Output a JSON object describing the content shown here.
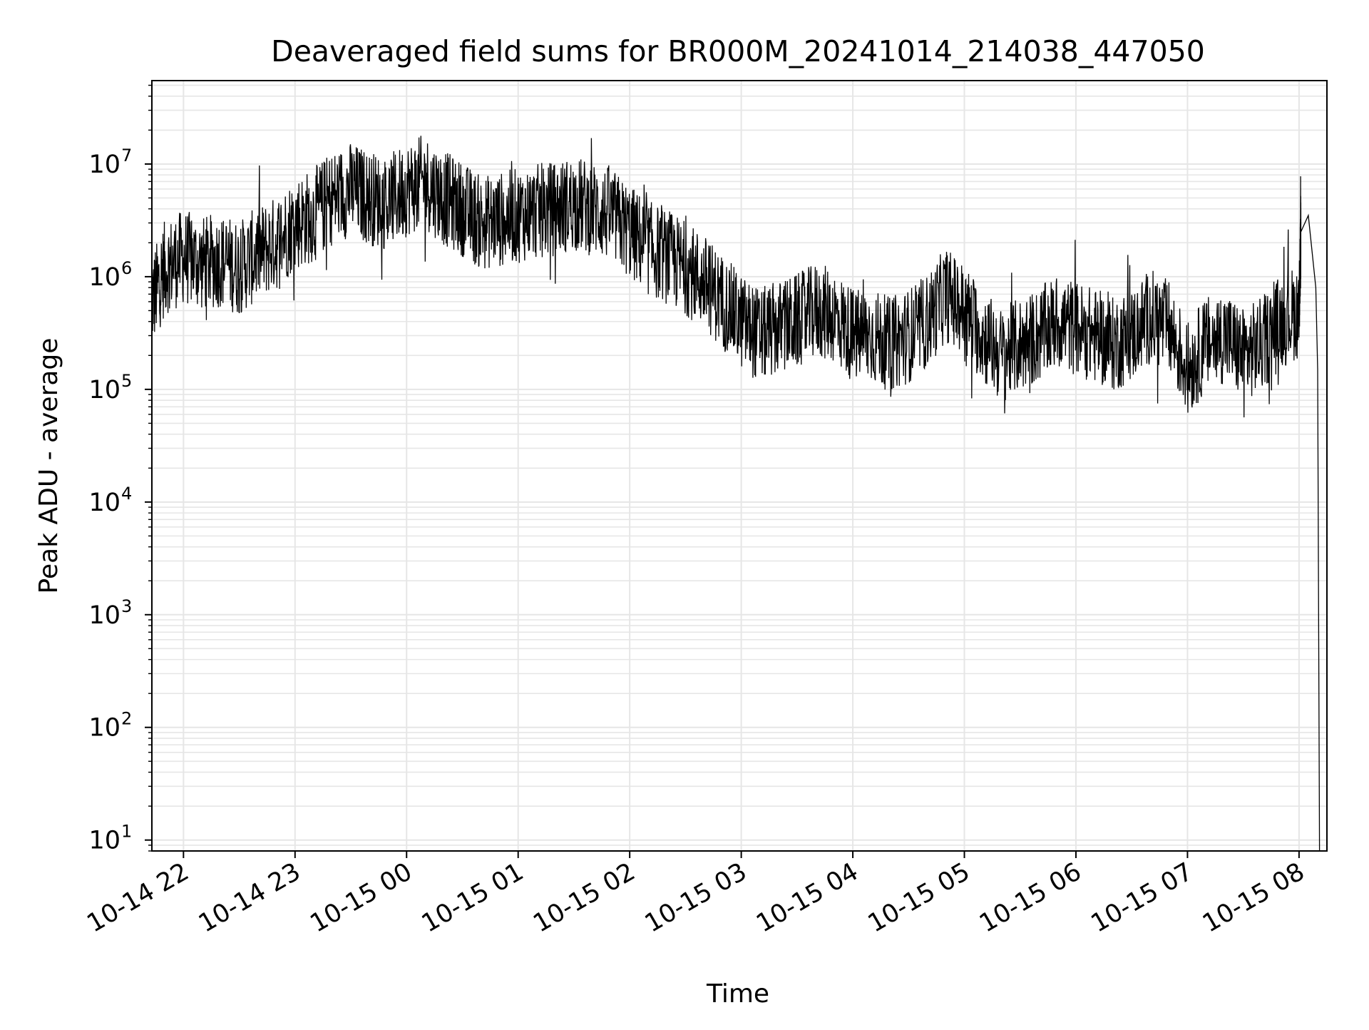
{
  "chart_data": {
    "type": "line",
    "title": "Deaveraged field sums for BR000M_20241014_214038_447050",
    "xlabel": "Time",
    "ylabel": "Peak ADU - average",
    "x_axis": {
      "kind": "datetime",
      "range": [
        "2024-10-14 21:43",
        "2024-10-15 08:15"
      ],
      "ticks": [
        {
          "label": "10-14 22",
          "value": "2024-10-14 22:00"
        },
        {
          "label": "10-14 23",
          "value": "2024-10-14 23:00"
        },
        {
          "label": "10-15 00",
          "value": "2024-10-15 00:00"
        },
        {
          "label": "10-15 01",
          "value": "2024-10-15 01:00"
        },
        {
          "label": "10-15 02",
          "value": "2024-10-15 02:00"
        },
        {
          "label": "10-15 03",
          "value": "2024-10-15 03:00"
        },
        {
          "label": "10-15 04",
          "value": "2024-10-15 04:00"
        },
        {
          "label": "10-15 05",
          "value": "2024-10-15 05:00"
        },
        {
          "label": "10-15 06",
          "value": "2024-10-15 06:00"
        },
        {
          "label": "10-15 07",
          "value": "2024-10-15 07:00"
        },
        {
          "label": "10-15 08",
          "value": "2024-10-15 08:00"
        }
      ]
    },
    "y_axis": {
      "scale": "log",
      "range": [
        8,
        55000000
      ],
      "ticks": [
        {
          "base": "10",
          "exp": "1",
          "value": 10
        },
        {
          "base": "10",
          "exp": "2",
          "value": 100
        },
        {
          "base": "10",
          "exp": "3",
          "value": 1000
        },
        {
          "base": "10",
          "exp": "4",
          "value": 10000
        },
        {
          "base": "10",
          "exp": "5",
          "value": 100000
        },
        {
          "base": "10",
          "exp": "6",
          "value": 1000000
        },
        {
          "base": "10",
          "exp": "7",
          "value": 10000000
        }
      ]
    },
    "grid": true,
    "legend": "none",
    "line_color": "#000000",
    "grid_color": "#e6e6e6",
    "series": [
      {
        "x": [
          "2024-10-14 21:43",
          "2024-10-14 21:50",
          "2024-10-14 22:00",
          "2024-10-14 22:10",
          "2024-10-14 22:20",
          "2024-10-14 22:30",
          "2024-10-14 22:40",
          "2024-10-14 22:50",
          "2024-10-14 23:00",
          "2024-10-14 23:10",
          "2024-10-14 23:20",
          "2024-10-14 23:30",
          "2024-10-14 23:40",
          "2024-10-14 23:50",
          "2024-10-15 00:00",
          "2024-10-15 00:10",
          "2024-10-15 00:20",
          "2024-10-15 00:30",
          "2024-10-15 00:40",
          "2024-10-15 00:50",
          "2024-10-15 01:00",
          "2024-10-15 01:10",
          "2024-10-15 01:20",
          "2024-10-15 01:30",
          "2024-10-15 01:40",
          "2024-10-15 01:50",
          "2024-10-15 02:00",
          "2024-10-15 02:10",
          "2024-10-15 02:20",
          "2024-10-15 02:30",
          "2024-10-15 02:40",
          "2024-10-15 02:50",
          "2024-10-15 03:00",
          "2024-10-15 03:10",
          "2024-10-15 03:20",
          "2024-10-15 03:30",
          "2024-10-15 03:40",
          "2024-10-15 03:50",
          "2024-10-15 04:00",
          "2024-10-15 04:10",
          "2024-10-15 04:20",
          "2024-10-15 04:30",
          "2024-10-15 04:40",
          "2024-10-15 04:50",
          "2024-10-15 05:00",
          "2024-10-15 05:10",
          "2024-10-15 05:20",
          "2024-10-15 05:30",
          "2024-10-15 05:40",
          "2024-10-15 05:50",
          "2024-10-15 06:00",
          "2024-10-15 06:10",
          "2024-10-15 06:20",
          "2024-10-15 06:30",
          "2024-10-15 06:40",
          "2024-10-15 06:50",
          "2024-10-15 07:00",
          "2024-10-15 07:10",
          "2024-10-15 07:20",
          "2024-10-15 07:30",
          "2024-10-15 07:40",
          "2024-10-15 07:50",
          "2024-10-15 08:00",
          "2024-10-15 08:01",
          "2024-10-15 08:05",
          "2024-10-15 08:09",
          "2024-10-15 08:10",
          "2024-10-15 08:11"
        ],
        "y": [
          600000,
          1200000,
          1500000,
          1300000,
          1400000,
          1200000,
          1600000,
          2000000,
          3000000,
          3500000,
          5000000,
          6000000,
          5000000,
          4500000,
          6000000,
          7000000,
          5000000,
          4000000,
          3000000,
          3200000,
          3500000,
          3800000,
          4000000,
          4500000,
          4000000,
          3500000,
          2500000,
          1800000,
          1500000,
          1200000,
          900000,
          600000,
          400000,
          300000,
          350000,
          400000,
          500000,
          450000,
          300000,
          300000,
          250000,
          300000,
          400000,
          700000,
          500000,
          300000,
          200000,
          250000,
          300000,
          400000,
          350000,
          300000,
          250000,
          300000,
          450000,
          350000,
          150000,
          250000,
          300000,
          200000,
          250000,
          400000,
          500000,
          2500000,
          3500000,
          800000,
          150000,
          8
        ]
      }
    ]
  }
}
